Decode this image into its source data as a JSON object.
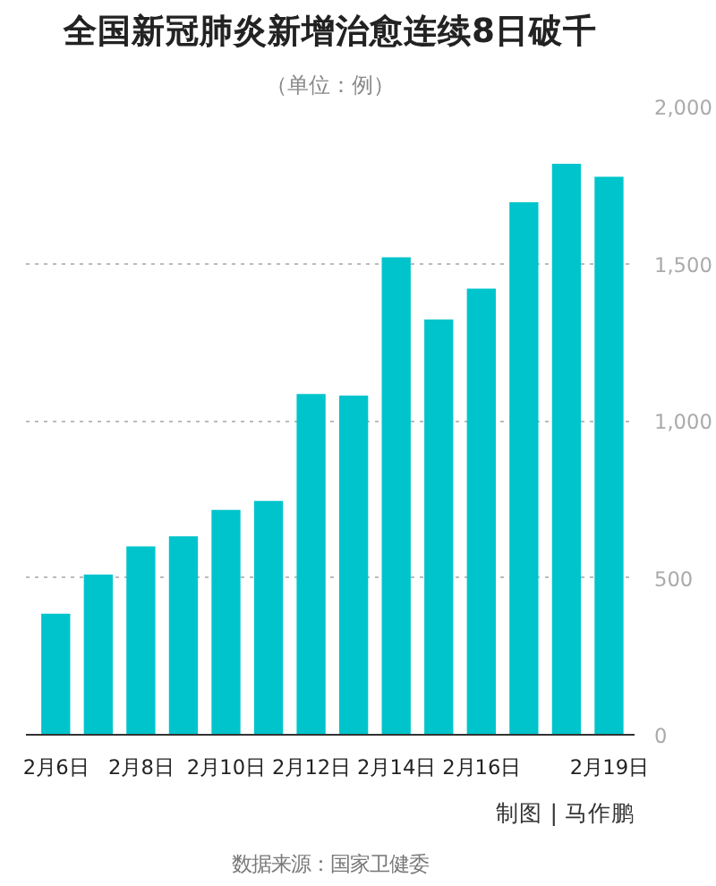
{
  "chart_data": {
    "type": "bar",
    "title": "全国新冠肺炎新增治愈连续8日破千",
    "subtitle": "（单位：例）",
    "categories": [
      "2月6日",
      null,
      "2月8日",
      null,
      "2月10日",
      null,
      "2月12日",
      null,
      "2月14日",
      null,
      "2月16日",
      null,
      null,
      "2月19日"
    ],
    "values": [
      385,
      510,
      600,
      632,
      716,
      744,
      1085,
      1080,
      1520,
      1322,
      1420,
      1695,
      1818,
      1776
    ],
    "color": "#00c4cc",
    "ylim": [
      0,
      2000
    ],
    "yticks": [
      0,
      {
        "value": 500,
        "label": "500"
      },
      {
        "value": 1000,
        "label": "1,000"
      },
      {
        "value": 1500,
        "label": "1,500"
      },
      {
        "value": 2000,
        "label": "2,000"
      }
    ],
    "grid": "y",
    "annotations": [
      "制图 | 马作鹏",
      "数据来源：国家卫健委"
    ]
  }
}
